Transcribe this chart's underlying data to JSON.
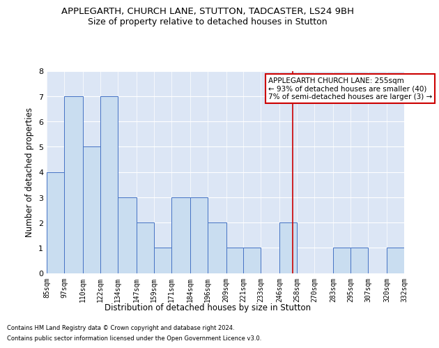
{
  "title": "APPLEGARTH, CHURCH LANE, STUTTON, TADCASTER, LS24 9BH",
  "subtitle": "Size of property relative to detached houses in Stutton",
  "xlabel": "Distribution of detached houses by size in Stutton",
  "ylabel": "Number of detached properties",
  "footnote1": "Contains HM Land Registry data © Crown copyright and database right 2024.",
  "footnote2": "Contains public sector information licensed under the Open Government Licence v3.0.",
  "annotation_title": "APPLEGARTH CHURCH LANE: 255sqm",
  "annotation_line1": "← 93% of detached houses are smaller (40)",
  "annotation_line2": "7% of semi-detached houses are larger (3) →",
  "property_size": 255,
  "bar_left_edges": [
    85,
    97,
    110,
    122,
    134,
    147,
    159,
    171,
    184,
    196,
    209,
    221,
    233,
    246,
    258,
    270,
    283,
    295,
    307,
    320
  ],
  "bar_widths": [
    12,
    13,
    12,
    12,
    13,
    12,
    12,
    13,
    12,
    13,
    12,
    12,
    13,
    12,
    12,
    13,
    12,
    12,
    13,
    12
  ],
  "bar_heights": [
    4,
    7,
    5,
    7,
    3,
    2,
    1,
    3,
    3,
    2,
    1,
    1,
    0,
    2,
    0,
    0,
    1,
    1,
    0,
    1
  ],
  "last_tick": 332,
  "bar_color": "#c9ddf0",
  "bar_edge_color": "#4472c4",
  "bg_color": "#dce6f5",
  "grid_color": "#ffffff",
  "fig_bg_color": "#ffffff",
  "annotation_box_color": "#ffffff",
  "annotation_box_edge": "#cc0000",
  "vline_color": "#cc0000",
  "ylim": [
    0,
    8
  ],
  "yticks": [
    0,
    1,
    2,
    3,
    4,
    5,
    6,
    7,
    8
  ],
  "title_fontsize": 9.5,
  "subtitle_fontsize": 9,
  "ylabel_fontsize": 8.5,
  "xlabel_fontsize": 8.5,
  "tick_fontsize": 7,
  "annotation_fontsize": 7.5,
  "footnote_fontsize": 6
}
